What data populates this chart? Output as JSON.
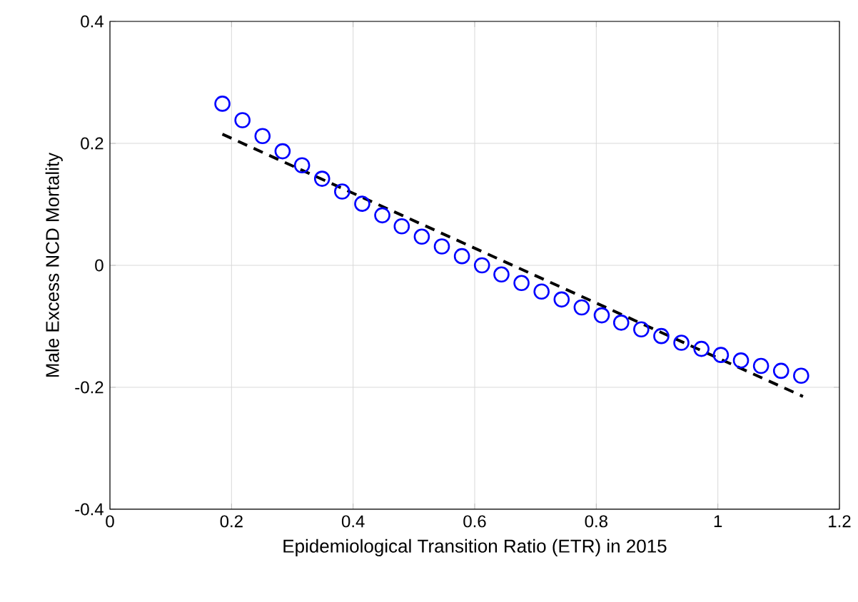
{
  "chart_data": {
    "type": "scatter",
    "xlabel": "Epidemiological Transition Ratio (ETR) in 2015",
    "ylabel": "Male Excess NCD Mortality",
    "xlim": [
      0,
      1.2
    ],
    "ylim": [
      -0.4,
      0.4
    ],
    "xticks": [
      0,
      0.2,
      0.4,
      0.6,
      0.8,
      1,
      1.2
    ],
    "yticks": [
      -0.4,
      -0.2,
      0,
      0.2,
      0.4
    ],
    "grid": true,
    "marker": "circle",
    "series": [
      {
        "color": "#0000ff",
        "x": [
          0.185,
          0.218,
          0.251,
          0.284,
          0.316,
          0.349,
          0.382,
          0.415,
          0.448,
          0.48,
          0.513,
          0.546,
          0.579,
          0.612,
          0.644,
          0.677,
          0.71,
          0.743,
          0.776,
          0.809,
          0.841,
          0.874,
          0.907,
          0.94,
          0.973,
          1.005,
          1.038,
          1.071,
          1.104,
          1.137
        ],
        "values": [
          0.265,
          0.238,
          0.212,
          0.187,
          0.164,
          0.142,
          0.121,
          0.101,
          0.082,
          0.064,
          0.047,
          0.031,
          0.015,
          0.0,
          -0.015,
          -0.029,
          -0.043,
          -0.056,
          -0.069,
          -0.082,
          -0.094,
          -0.105,
          -0.116,
          -0.127,
          -0.137,
          -0.147,
          -0.156,
          -0.165,
          -0.173,
          -0.181
        ]
      },
      {
        "type": "line",
        "color": "#000000",
        "line_style": "dashed",
        "marker": "none",
        "x": [
          0.185,
          1.14
        ],
        "values": [
          0.215,
          -0.215
        ]
      }
    ]
  }
}
